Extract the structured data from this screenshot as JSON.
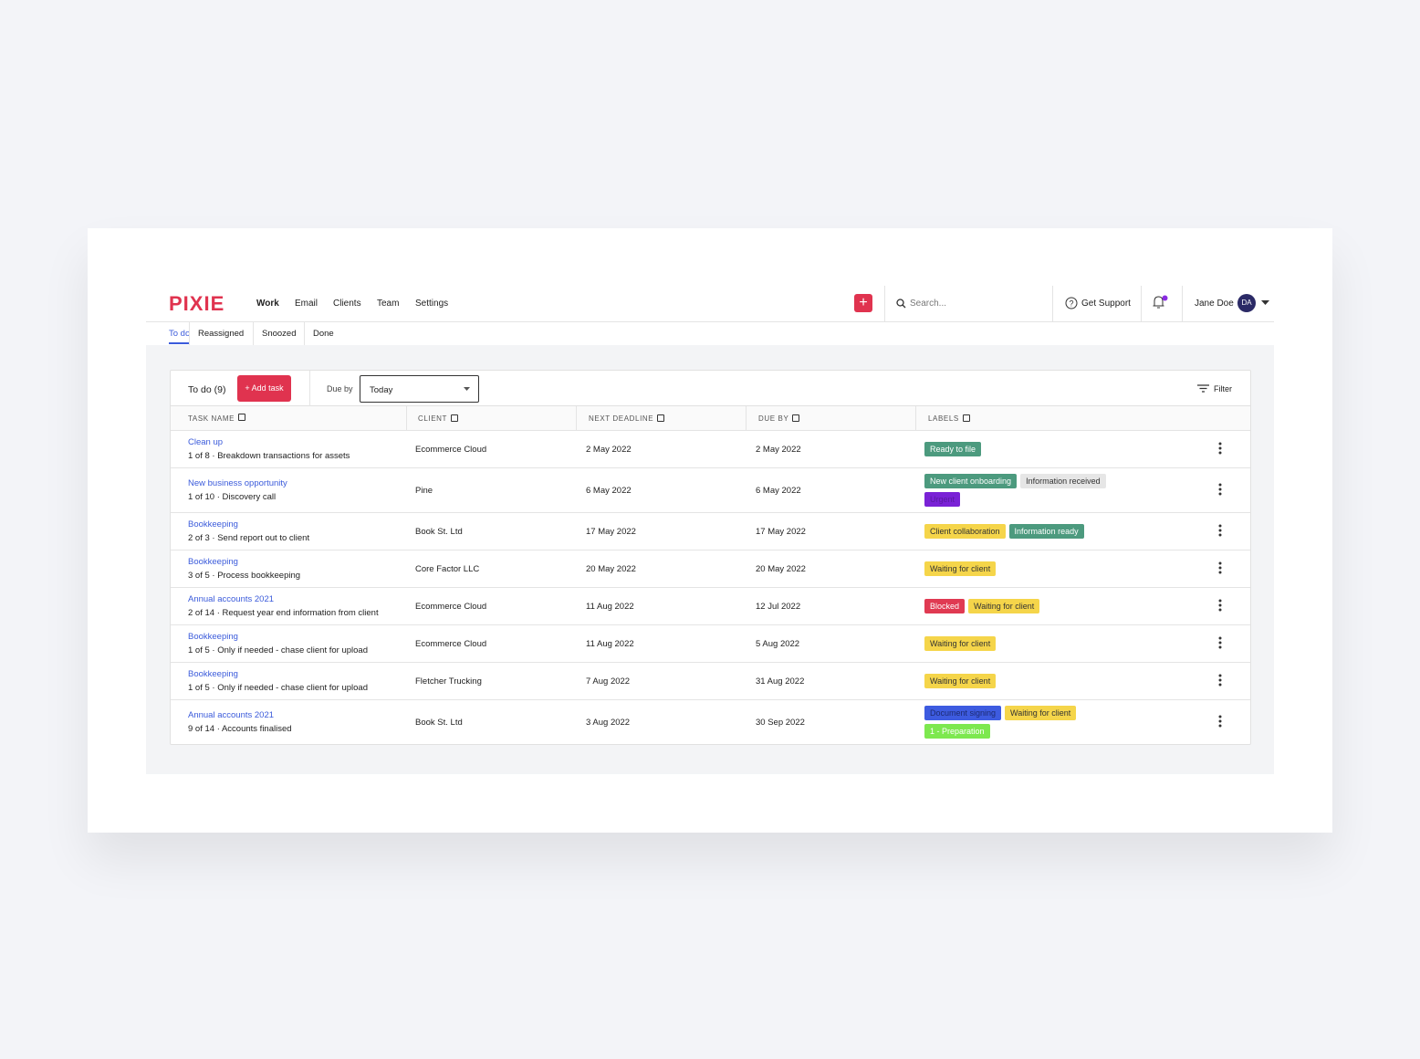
{
  "header": {
    "logo": "PIXIE",
    "nav": [
      "Work",
      "Email",
      "Clients",
      "Team",
      "Settings"
    ],
    "search": "Search...",
    "support": "Get Support",
    "user": "Jane Doe",
    "avatar": "DA"
  },
  "tabs": [
    "To do",
    "Reassigned",
    "Snoozed",
    "Done"
  ],
  "toolbar": {
    "title": "To do (9)",
    "add_task": "+ Add task",
    "due_by_label": "Due by",
    "due_by_value": "Today",
    "filter": "Filter"
  },
  "table": {
    "columns": [
      "TASK NAME",
      "CLIENT",
      "NEXT DEADLINE",
      "DUE BY",
      "LABELS"
    ],
    "rows": [
      {
        "task": "Clean up",
        "step": "1 of 8 · Breakdown transactions for assets",
        "client": "Ecommerce Cloud",
        "next_deadline": "2 May 2022",
        "due_by": "2 May 2022",
        "labels": [
          {
            "text": "Ready to file",
            "color": "#4c9a7e",
            "text_color": "#ffffff"
          }
        ]
      },
      {
        "task": "New business opportunity",
        "step": "1 of 10 · Discovery call",
        "client": "Pine",
        "next_deadline": "6 May 2022",
        "due_by": "6 May 2022",
        "labels": [
          {
            "text": "New client onboarding",
            "color": "#4c9a7e",
            "text_color": "#ffffff"
          },
          {
            "text": "Information received",
            "color": "#e6e6e6",
            "text_color": "#333333"
          },
          {
            "text": "Urgent",
            "color": "#7a22d6",
            "text_color": "#5a1aa0"
          }
        ]
      },
      {
        "task": "Bookkeeping",
        "step": "2 of 3 · Send report out to client",
        "client": "Book St. Ltd",
        "next_deadline": "17 May 2022",
        "due_by": "17 May 2022",
        "labels": [
          {
            "text": "Client collaboration",
            "color": "#f5d54a",
            "text_color": "#333333"
          },
          {
            "text": "Information ready",
            "color": "#4c9a7e",
            "text_color": "#ffffff"
          }
        ]
      },
      {
        "task": "Bookkeeping",
        "step": "3 of 5 · Process bookkeeping",
        "client": "Core Factor LLC",
        "next_deadline": "20 May 2022",
        "due_by": "20 May 2022",
        "labels": [
          {
            "text": "Waiting for client",
            "color": "#f5d54a",
            "text_color": "#333333"
          }
        ]
      },
      {
        "task": "Annual accounts 2021",
        "step": "2 of 14 · Request year end information from client",
        "client": "Ecommerce Cloud",
        "next_deadline": "11 Aug 2022",
        "due_by": "12 Jul 2022",
        "labels": [
          {
            "text": "Blocked",
            "color": "#e03a52",
            "text_color": "#ffffff"
          },
          {
            "text": "Waiting for client",
            "color": "#f5d54a",
            "text_color": "#333333"
          }
        ]
      },
      {
        "task": "Bookkeeping",
        "step": "1 of 5 · Only if needed - chase client for upload",
        "client": "Ecommerce Cloud",
        "next_deadline": "11 Aug 2022",
        "due_by": "5 Aug 2022",
        "labels": [
          {
            "text": "Waiting for client",
            "color": "#f5d54a",
            "text_color": "#333333"
          }
        ]
      },
      {
        "task": "Bookkeeping",
        "step": "1 of 5 · Only if needed - chase client for upload",
        "client": "Fletcher Trucking",
        "next_deadline": "7 Aug 2022",
        "due_by": "31 Aug 2022",
        "labels": [
          {
            "text": "Waiting for client",
            "color": "#f5d54a",
            "text_color": "#333333"
          }
        ]
      },
      {
        "task": "Annual accounts 2021",
        "step": "9 of 14 · Accounts finalised",
        "client": "Book St. Ltd",
        "next_deadline": "3 Aug 2022",
        "due_by": "30 Sep 2022",
        "labels": [
          {
            "text": "Document signing",
            "color": "#3d5be0",
            "text_color": "#1c2a70"
          },
          {
            "text": "Waiting for client",
            "color": "#f5d54a",
            "text_color": "#333333"
          },
          {
            "text": "1 - Preparation",
            "color": "#7de84f",
            "text_color": "#ffffff"
          }
        ]
      }
    ]
  }
}
